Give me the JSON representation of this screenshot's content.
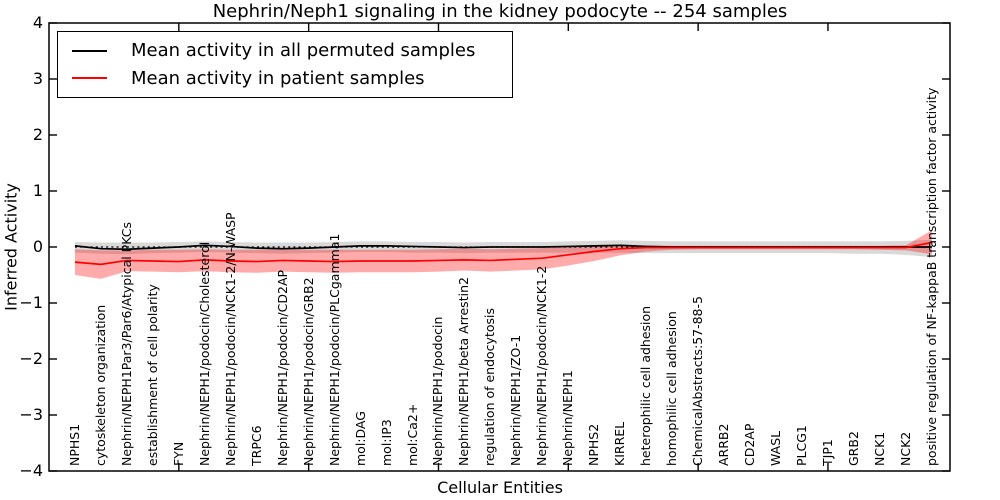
{
  "chart_data": {
    "type": "line",
    "title": "Nephrin/Neph1 signaling in the kidney podocyte -- 254 samples",
    "xlabel": "Cellular Entities",
    "ylabel": "Inferred Activity",
    "ylim": [
      -4,
      4
    ],
    "xlim": [
      0,
      34.7
    ],
    "yticks": [
      4,
      3,
      2,
      1,
      0,
      -1,
      -2,
      -3,
      -4
    ],
    "x_major_tick_values": [
      5,
      10,
      15,
      20,
      25,
      30
    ],
    "grid": false,
    "legend_position": "upper left",
    "zero_reference_line": {
      "y": 0,
      "style": "dotted",
      "color": "#000000"
    },
    "background_color": "#ffffff",
    "axis_color": "#000000",
    "categories": [
      "NPHS1",
      "cytoskeleton organization",
      "Nephrin/NEPH1Par3/Par6/Atypical PKCs",
      "establishment of cell polarity",
      "FYN",
      "Nephrin/NEPH1/podocin/Cholesterol",
      "Nephrin/NEPH1/podocin/NCK1-2/N-WASP",
      "TRPC6",
      "Nephrin/NEPH1/podocin/CD2AP",
      "Nephrin/NEPH1/podocin/GRB2",
      "Nephrin/NEPH1/podocin/PLCgamma1",
      "mol:DAG",
      "mol:IP3",
      "mol:Ca2+",
      "Nephrin/NEPH1/podocin",
      "Nephrin/NEPH1/beta Arrestin2",
      "regulation of endocytosis",
      "Nephrin/NEPH1/ZO-1",
      "Nephrin/NEPH1/podocin/NCK1-2",
      "Nephrin/NEPH1",
      "NPHS2",
      "KIRREL",
      "heterophilic cell adhesion",
      "homophilic cell adhesion",
      "ChemicalAbstracts:57-88-5",
      "ARRB2",
      "CD2AP",
      "WASL",
      "PLCG1",
      "TJP1",
      "GRB2",
      "NCK1",
      "NCK2",
      "positive regulation of NF-kappaB transcription factor activity"
    ],
    "series": [
      {
        "name": "Mean activity in all permuted samples",
        "color": "#000000",
        "band_color": "rgba(128,128,128,0.30)",
        "values": [
          0.02,
          -0.03,
          -0.04,
          -0.02,
          0.0,
          0.03,
          0.01,
          -0.02,
          -0.03,
          -0.02,
          0.0,
          0.02,
          0.02,
          0.01,
          0.0,
          -0.01,
          0.0,
          0.0,
          0.0,
          0.01,
          0.02,
          0.03,
          0.01,
          0.0,
          0.0,
          0.0,
          0.0,
          0.0,
          0.0,
          0.0,
          0.0,
          0.0,
          0.0,
          0.0
        ],
        "band_upper": [
          0.09,
          0.08,
          0.08,
          0.08,
          0.09,
          0.1,
          0.09,
          0.08,
          0.08,
          0.08,
          0.09,
          0.1,
          0.1,
          0.09,
          0.09,
          0.08,
          0.09,
          0.09,
          0.09,
          0.1,
          0.11,
          0.12,
          0.11,
          0.1,
          0.1,
          0.1,
          0.1,
          0.1,
          0.1,
          0.1,
          0.1,
          0.1,
          0.11,
          0.13
        ],
        "band_lower": [
          -0.1,
          -0.12,
          -0.13,
          -0.11,
          -0.1,
          -0.09,
          -0.1,
          -0.11,
          -0.12,
          -0.11,
          -0.1,
          -0.09,
          -0.09,
          -0.1,
          -0.1,
          -0.11,
          -0.1,
          -0.1,
          -0.1,
          -0.1,
          -0.1,
          -0.1,
          -0.11,
          -0.11,
          -0.11,
          -0.11,
          -0.11,
          -0.11,
          -0.11,
          -0.11,
          -0.12,
          -0.12,
          -0.14,
          -0.18
        ]
      },
      {
        "name": "Mean activity in patient samples",
        "color": "#ff0000",
        "band_color": "rgba(255,0,0,0.33)",
        "values": [
          -0.27,
          -0.31,
          -0.24,
          -0.25,
          -0.26,
          -0.23,
          -0.25,
          -0.26,
          -0.24,
          -0.25,
          -0.26,
          -0.25,
          -0.25,
          -0.25,
          -0.24,
          -0.23,
          -0.24,
          -0.22,
          -0.2,
          -0.14,
          -0.08,
          -0.03,
          -0.01,
          -0.01,
          -0.01,
          -0.01,
          -0.01,
          -0.01,
          -0.01,
          -0.01,
          -0.01,
          -0.01,
          -0.01,
          0.08
        ],
        "band_upper": [
          -0.04,
          -0.06,
          -0.06,
          -0.05,
          -0.05,
          -0.04,
          -0.05,
          -0.05,
          -0.04,
          -0.05,
          -0.05,
          -0.05,
          -0.05,
          -0.05,
          -0.04,
          -0.03,
          -0.04,
          -0.03,
          -0.02,
          0.0,
          0.02,
          0.03,
          0.03,
          0.02,
          0.02,
          0.02,
          0.02,
          0.02,
          0.02,
          0.02,
          0.02,
          0.02,
          0.03,
          0.3
        ],
        "band_lower": [
          -0.5,
          -0.57,
          -0.43,
          -0.44,
          -0.45,
          -0.43,
          -0.45,
          -0.46,
          -0.44,
          -0.45,
          -0.46,
          -0.45,
          -0.45,
          -0.45,
          -0.44,
          -0.42,
          -0.44,
          -0.42,
          -0.4,
          -0.33,
          -0.25,
          -0.15,
          -0.08,
          -0.05,
          -0.04,
          -0.04,
          -0.04,
          -0.04,
          -0.04,
          -0.04,
          -0.04,
          -0.05,
          -0.06,
          -0.13
        ]
      }
    ]
  }
}
